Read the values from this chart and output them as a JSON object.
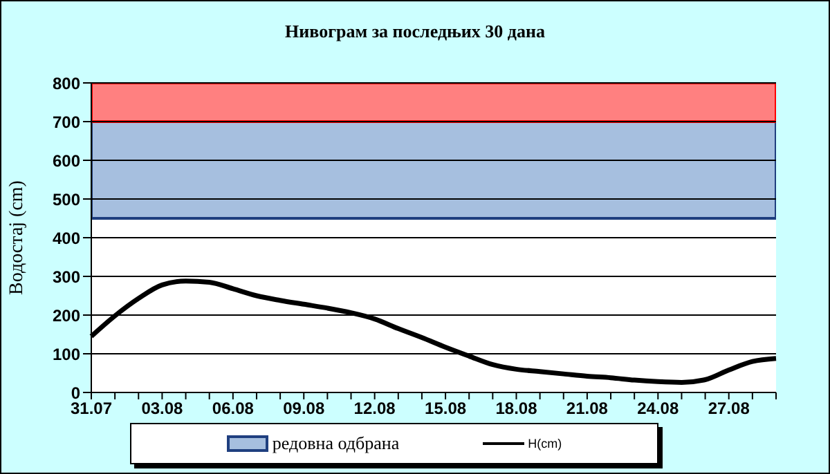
{
  "chart_data": {
    "type": "line",
    "title": "Нивограм за последњих 30 дана",
    "ylabel": "Водостај (cm)",
    "categories": [
      "31.07",
      null,
      null,
      "03.08",
      null,
      null,
      "06.08",
      null,
      null,
      "09.08",
      null,
      null,
      "12.08",
      null,
      null,
      "15.08",
      null,
      null,
      "18.08",
      null,
      null,
      "21.08",
      null,
      null,
      "24.08",
      null,
      null,
      "27.08",
      null,
      null
    ],
    "series": [
      {
        "name": "H(cm)",
        "color": "#000000",
        "values": [
          145,
          198,
          243,
          278,
          288,
          285,
          268,
          250,
          238,
          228,
          218,
          206,
          190,
          165,
          142,
          117,
          94,
          72,
          60,
          54,
          48,
          42,
          38,
          32,
          28,
          26,
          33,
          58,
          80,
          88
        ]
      }
    ],
    "bands": [
      {
        "axis": "y",
        "from": 450,
        "to": 700,
        "label": "редовна одбрана",
        "color": "#a6bfdf"
      },
      {
        "axis": "y",
        "from": 700,
        "to": 800,
        "color": "#ff8080"
      }
    ],
    "ylim": [
      0,
      800
    ],
    "yticks": [
      0,
      100,
      200,
      300,
      400,
      500,
      600,
      700,
      800
    ],
    "grid": "y",
    "legend": "bottom",
    "marker": "none",
    "line_style": "solid"
  }
}
